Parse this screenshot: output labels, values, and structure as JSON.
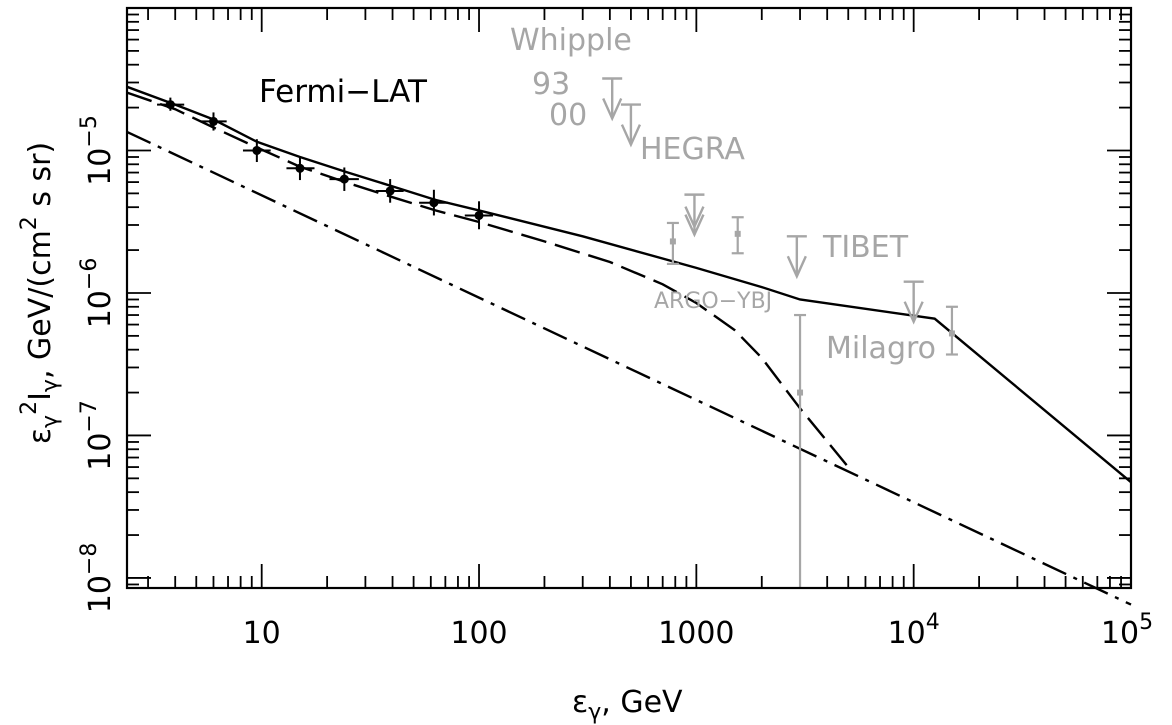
{
  "chart_data": {
    "type": "line",
    "title": "",
    "xlabel": "ε_γ, GeV",
    "ylabel": "ε_γ²I_γ, GeV/(cm² s sr)",
    "xscale": "log",
    "yscale": "log",
    "xlim": [
      2.4,
      100000
    ],
    "ylim": [
      8.5e-09,
      0.0001
    ],
    "grid": false,
    "x_tick_labels": [
      {
        "value": 10,
        "base": "10",
        "exp": ""
      },
      {
        "value": 100,
        "base": "100",
        "exp": ""
      },
      {
        "value": 1000,
        "base": "1000",
        "exp": ""
      },
      {
        "value": 10000,
        "base": "10",
        "exp": "4"
      },
      {
        "value": 100000,
        "base": "10",
        "exp": "5"
      }
    ],
    "y_tick_labels": [
      {
        "value": 1e-08,
        "base": "10",
        "exp": "−8"
      },
      {
        "value": 1e-07,
        "base": "10",
        "exp": "−7"
      },
      {
        "value": 1e-06,
        "base": "10",
        "exp": "−6"
      },
      {
        "value": 1e-05,
        "base": "10",
        "exp": "−5"
      }
    ],
    "series": [
      {
        "style": "solid",
        "color": "#000000",
        "x": [
          2.4,
          4,
          6,
          9.5,
          15,
          25,
          40,
          63,
          100,
          300,
          1000,
          2000,
          3000,
          12500,
          100000
        ],
        "y": [
          2.8e-05,
          2.1e-05,
          1.65e-05,
          1.15e-05,
          9e-06,
          7e-06,
          5.6e-06,
          4.5e-06,
          3.8e-06,
          2.5e-06,
          1.5e-06,
          1.1e-06,
          9e-07,
          6.6e-07,
          4.7e-08
        ]
      },
      {
        "style": "dashed",
        "color": "#000000",
        "x": [
          2.4,
          4,
          6,
          9.5,
          15,
          25,
          40,
          63,
          100,
          200,
          400,
          700,
          1000,
          1500,
          2000,
          3000,
          5000
        ],
        "y": [
          2.55e-05,
          1.95e-05,
          1.45e-05,
          1.05e-05,
          7.7e-06,
          5.9e-06,
          4.7e-06,
          3.8e-06,
          3.15e-06,
          2.3e-06,
          1.65e-06,
          1.15e-06,
          8.5e-07,
          5.5e-07,
          3.5e-07,
          1.55e-07,
          6e-08
        ]
      },
      {
        "style": "dashdot",
        "color": "#000000",
        "x": [
          2.4,
          100000
        ],
        "y": [
          1.35e-05,
          6.5e-09
        ]
      }
    ],
    "fermi_points": [
      {
        "x": 3.8,
        "y": 2.1e-05,
        "ylo": 1.9e-05,
        "yhi": 2.35e-05,
        "xlo": 3.3,
        "xhi": 4.4
      },
      {
        "x": 6.0,
        "y": 1.6e-05,
        "ylo": 1.38e-05,
        "yhi": 1.85e-05,
        "xlo": 5.2,
        "xhi": 6.9
      },
      {
        "x": 9.5,
        "y": 1e-05,
        "ylo": 8.3e-06,
        "yhi": 1.2e-05,
        "xlo": 8.2,
        "xhi": 11
      },
      {
        "x": 15,
        "y": 7.5e-06,
        "ylo": 6.2e-06,
        "yhi": 9e-06,
        "xlo": 13,
        "xhi": 17.5
      },
      {
        "x": 24,
        "y": 6.3e-06,
        "ylo": 5.2e-06,
        "yhi": 7.6e-06,
        "xlo": 20.5,
        "xhi": 28
      },
      {
        "x": 39,
        "y": 5.2e-06,
        "ylo": 4.3e-06,
        "yhi": 6.3e-06,
        "xlo": 33.5,
        "xhi": 45
      },
      {
        "x": 62,
        "y": 4.3e-06,
        "ylo": 3.5e-06,
        "yhi": 5.3e-06,
        "xlo": 53,
        "xhi": 72
      },
      {
        "x": 100,
        "y": 3.5e-06,
        "ylo": 2.8e-06,
        "yhi": 4.4e-06,
        "xlo": 86,
        "xhi": 116
      }
    ],
    "grey_points": [
      {
        "x": 780,
        "y": 2.3e-06,
        "ylo": 1.6e-06,
        "yhi": 3.1e-06
      },
      {
        "x": 1550,
        "y": 2.6e-06,
        "ylo": 1.9e-06,
        "yhi": 3.4e-06
      },
      {
        "x": 3000,
        "y": 2e-07,
        "ylo": 8.5e-09,
        "yhi": 7e-07
      },
      {
        "x": 15000,
        "y": 5.2e-07,
        "ylo": 3.7e-07,
        "yhi": 8e-07
      }
    ],
    "upper_limits": [
      {
        "x": 410,
        "y": 3.2e-05,
        "double": false
      },
      {
        "x": 500,
        "y": 2.1e-05,
        "double": false
      },
      {
        "x": 980,
        "y": 4.9e-06,
        "double": true
      },
      {
        "x": 2900,
        "y": 2.5e-06,
        "double": false
      },
      {
        "x": 10000,
        "y": 1.2e-06,
        "double": false
      }
    ],
    "annotations": {
      "fermi": "Fermi−LAT",
      "whipple": "Whipple",
      "whipple_93": "93",
      "whipple_00": "00",
      "hegra": "HEGRA",
      "tibet": "TIBET",
      "argo": "ARGO−YBJ",
      "milagro": "Milagro"
    }
  }
}
